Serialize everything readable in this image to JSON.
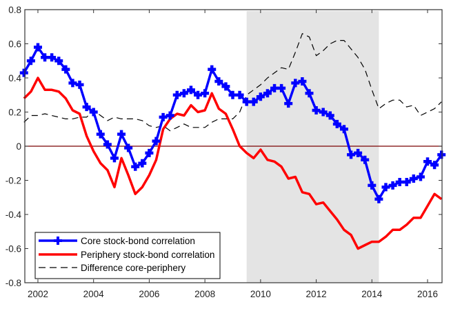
{
  "chart_data": {
    "type": "line",
    "title": "",
    "xlabel": "",
    "ylabel": "",
    "xlim": [
      2001.53,
      2016.52
    ],
    "ylim": [
      -0.8,
      0.8
    ],
    "xticks": [
      2002,
      2004,
      2006,
      2008,
      2010,
      2012,
      2014,
      2016
    ],
    "xtick_labels": [
      "2002",
      "2004",
      "2006",
      "2008",
      "2010",
      "2012",
      "2014",
      "2016"
    ],
    "yticks": [
      -0.8,
      -0.6,
      -0.4,
      -0.2,
      0,
      0.2,
      0.4,
      0.6,
      0.8
    ],
    "ytick_labels": [
      "-0.8",
      "-0.6",
      "-0.4",
      "-0.2",
      "0",
      "0.2",
      "0.4",
      "0.6",
      "0.8"
    ],
    "grid": false,
    "legend_position": "bottom-left",
    "zero_line": {
      "y": 0,
      "color": "#7a0000"
    },
    "shaded_region": {
      "x_start": 2009.5,
      "x_end": 2014.25,
      "color": "#e4e4e4"
    },
    "x": [
      2001.5,
      2001.75,
      2002.0,
      2002.25,
      2002.5,
      2002.75,
      2003.0,
      2003.25,
      2003.5,
      2003.75,
      2004.0,
      2004.25,
      2004.5,
      2004.75,
      2005.0,
      2005.25,
      2005.5,
      2005.75,
      2006.0,
      2006.25,
      2006.5,
      2006.75,
      2007.0,
      2007.25,
      2007.5,
      2007.75,
      2008.0,
      2008.25,
      2008.5,
      2008.75,
      2009.0,
      2009.25,
      2009.5,
      2009.75,
      2010.0,
      2010.25,
      2010.5,
      2010.75,
      2011.0,
      2011.25,
      2011.5,
      2011.75,
      2012.0,
      2012.25,
      2012.5,
      2012.75,
      2013.0,
      2013.25,
      2013.5,
      2013.75,
      2014.0,
      2014.25,
      2014.5,
      2014.75,
      2015.0,
      2015.25,
      2015.5,
      2015.75,
      2016.0,
      2016.25,
      2016.5
    ],
    "series": [
      {
        "name": "Core stock-bond correlation",
        "color": "#0000ff",
        "style": "solid-with-plus-markers",
        "values": [
          0.43,
          0.5,
          0.58,
          0.52,
          0.52,
          0.5,
          0.45,
          0.37,
          0.36,
          0.23,
          0.2,
          0.07,
          0.01,
          -0.07,
          0.07,
          -0.01,
          -0.12,
          -0.1,
          -0.04,
          0.03,
          0.17,
          0.18,
          0.3,
          0.31,
          0.33,
          0.3,
          0.31,
          0.45,
          0.38,
          0.35,
          0.3,
          0.3,
          0.26,
          0.26,
          0.29,
          0.31,
          0.34,
          0.34,
          0.25,
          0.37,
          0.38,
          0.31,
          0.21,
          0.2,
          0.18,
          0.13,
          0.1,
          -0.05,
          -0.04,
          -0.08,
          -0.23,
          -0.31,
          -0.24,
          -0.23,
          -0.21,
          -0.21,
          -0.19,
          -0.18,
          -0.09,
          -0.11,
          -0.05
        ]
      },
      {
        "name": "Periphery stock-bond correlation",
        "color": "#ff0000",
        "style": "solid",
        "values": [
          0.28,
          0.32,
          0.4,
          0.33,
          0.33,
          0.32,
          0.28,
          0.21,
          0.19,
          0.06,
          -0.03,
          -0.1,
          -0.14,
          -0.24,
          -0.07,
          -0.17,
          -0.28,
          -0.24,
          -0.17,
          -0.08,
          0.1,
          0.16,
          0.19,
          0.18,
          0.24,
          0.2,
          0.21,
          0.31,
          0.22,
          0.19,
          0.1,
          0.0,
          -0.04,
          -0.07,
          -0.02,
          -0.08,
          -0.09,
          -0.12,
          -0.19,
          -0.18,
          -0.27,
          -0.28,
          -0.34,
          -0.33,
          -0.38,
          -0.43,
          -0.49,
          -0.52,
          -0.6,
          -0.58,
          -0.56,
          -0.56,
          -0.53,
          -0.49,
          -0.49,
          -0.46,
          -0.42,
          -0.42,
          -0.35,
          -0.28,
          -0.31
        ]
      },
      {
        "name": "Difference core-periphery",
        "color": "#000000",
        "style": "dashed",
        "values": [
          0.14,
          0.18,
          0.18,
          0.19,
          0.18,
          0.17,
          0.16,
          0.16,
          0.17,
          0.17,
          0.21,
          0.18,
          0.15,
          0.17,
          0.16,
          0.16,
          0.16,
          0.15,
          0.12,
          0.11,
          0.12,
          0.09,
          0.11,
          0.13,
          0.11,
          0.11,
          0.11,
          0.14,
          0.16,
          0.16,
          0.16,
          0.2,
          0.3,
          0.33,
          0.36,
          0.4,
          0.43,
          0.46,
          0.45,
          0.55,
          0.66,
          0.64,
          0.53,
          0.56,
          0.6,
          0.62,
          0.62,
          0.57,
          0.52,
          0.45,
          0.33,
          0.22,
          0.25,
          0.27,
          0.27,
          0.23,
          0.24,
          0.18,
          0.2,
          0.22,
          0.26
        ]
      }
    ]
  }
}
